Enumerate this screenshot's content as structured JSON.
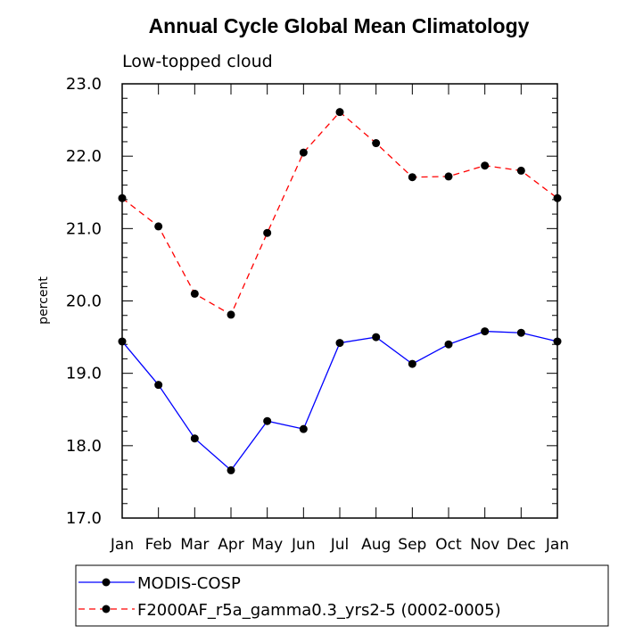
{
  "chart_data": {
    "type": "line",
    "title": "Annual Cycle Global Mean Climatology",
    "subtitle": "Low-topped cloud",
    "xlabel": "",
    "ylabel": "percent",
    "categories": [
      "Jan",
      "Feb",
      "Mar",
      "Apr",
      "May",
      "Jun",
      "Jul",
      "Aug",
      "Sep",
      "Oct",
      "Nov",
      "Dec",
      "Jan"
    ],
    "ylim": [
      17.0,
      23.0
    ],
    "yticks": [
      "17.0",
      "18.0",
      "19.0",
      "20.0",
      "21.0",
      "22.0",
      "23.0"
    ],
    "grid": false,
    "legend_position": "bottom",
    "series": [
      {
        "name": "MODIS-COSP",
        "color": "#0000ff",
        "dash": "solid",
        "values": [
          19.44,
          18.84,
          18.1,
          17.66,
          18.34,
          18.23,
          19.42,
          19.5,
          19.13,
          19.4,
          19.58,
          19.56,
          19.44
        ]
      },
      {
        "name": "F2000AF_r5a_gamma0.3_yrs2-5 (0002-0005)",
        "color": "#ff0000",
        "dash": "dashed",
        "values": [
          21.42,
          21.03,
          20.1,
          19.81,
          20.94,
          22.05,
          22.61,
          22.18,
          21.71,
          21.72,
          21.87,
          21.8,
          21.42
        ]
      }
    ]
  }
}
